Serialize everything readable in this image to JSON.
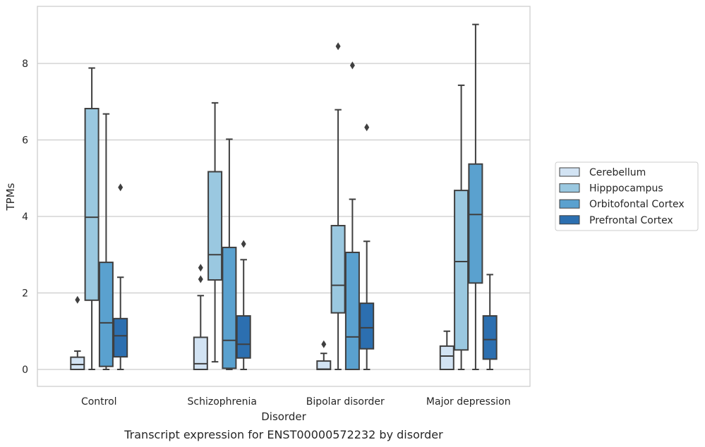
{
  "caption": "Transcript expression for ENST00000572232 by disorder",
  "chart_data": {
    "type": "box",
    "xlabel": "Disorder",
    "ylabel": "TPMs",
    "ylim": [
      -0.45,
      9.6
    ],
    "yticks": [
      0,
      2,
      4,
      6,
      8
    ],
    "grid": "horizontal",
    "legend_position": "right",
    "categories": [
      "Control",
      "Schizophrenia",
      "Bipolar disorder",
      "Major depression"
    ],
    "series": [
      {
        "name": "Cerebellum",
        "color": "#d2e3f3",
        "boxes": [
          {
            "whislo": 0,
            "q1": 0,
            "med": 0.13,
            "q3": 0.32,
            "whishi": 0.48,
            "fliers": [
              1.82
            ]
          },
          {
            "whislo": 0,
            "q1": 0,
            "med": 0.15,
            "q3": 0.84,
            "whishi": 1.93,
            "fliers": [
              2.36,
              2.66
            ]
          },
          {
            "whislo": 0,
            "q1": 0,
            "med": 0.01,
            "q3": 0.22,
            "whishi": 0.42,
            "fliers": [
              0.66
            ]
          },
          {
            "whislo": 0,
            "q1": 0,
            "med": 0.35,
            "q3": 0.61,
            "whishi": 1.0,
            "fliers": []
          }
        ]
      },
      {
        "name": "Hipppocampus",
        "color": "#9ac8e0",
        "boxes": [
          {
            "whislo": 0,
            "q1": 1.81,
            "med": 3.98,
            "q3": 6.82,
            "whishi": 7.88,
            "fliers": []
          },
          {
            "whislo": 0.2,
            "q1": 2.34,
            "med": 3.0,
            "q3": 5.17,
            "whishi": 6.97,
            "fliers": []
          },
          {
            "whislo": 0,
            "q1": 1.48,
            "med": 2.2,
            "q3": 3.76,
            "whishi": 6.79,
            "fliers": [
              8.45
            ]
          },
          {
            "whislo": 0,
            "q1": 0.51,
            "med": 2.82,
            "q3": 4.68,
            "whishi": 7.43,
            "fliers": []
          }
        ]
      },
      {
        "name": "Orbitofontal Cortex",
        "color": "#5aa1cf",
        "boxes": [
          {
            "whislo": 0,
            "q1": 0.08,
            "med": 1.22,
            "q3": 2.8,
            "whishi": 6.68,
            "fliers": []
          },
          {
            "whislo": 0,
            "q1": 0.03,
            "med": 0.76,
            "q3": 3.19,
            "whishi": 6.02,
            "fliers": []
          },
          {
            "whislo": 0,
            "q1": 0,
            "med": 0.85,
            "q3": 3.06,
            "whishi": 4.45,
            "fliers": [
              7.95
            ]
          },
          {
            "whislo": 0,
            "q1": 2.26,
            "med": 4.05,
            "q3": 5.37,
            "whishi": 9.02,
            "fliers": []
          }
        ]
      },
      {
        "name": "Prefrontal Cortex",
        "color": "#2c6fb0",
        "boxes": [
          {
            "whislo": 0,
            "q1": 0.33,
            "med": 0.88,
            "q3": 1.33,
            "whishi": 2.41,
            "fliers": [
              4.76
            ]
          },
          {
            "whislo": 0,
            "q1": 0.3,
            "med": 0.66,
            "q3": 1.4,
            "whishi": 2.87,
            "fliers": [
              3.28
            ]
          },
          {
            "whislo": 0,
            "q1": 0.54,
            "med": 1.09,
            "q3": 1.73,
            "whishi": 3.35,
            "fliers": [
              6.33
            ]
          },
          {
            "whislo": 0,
            "q1": 0.27,
            "med": 0.78,
            "q3": 1.4,
            "whishi": 2.48,
            "fliers": []
          }
        ]
      }
    ]
  }
}
